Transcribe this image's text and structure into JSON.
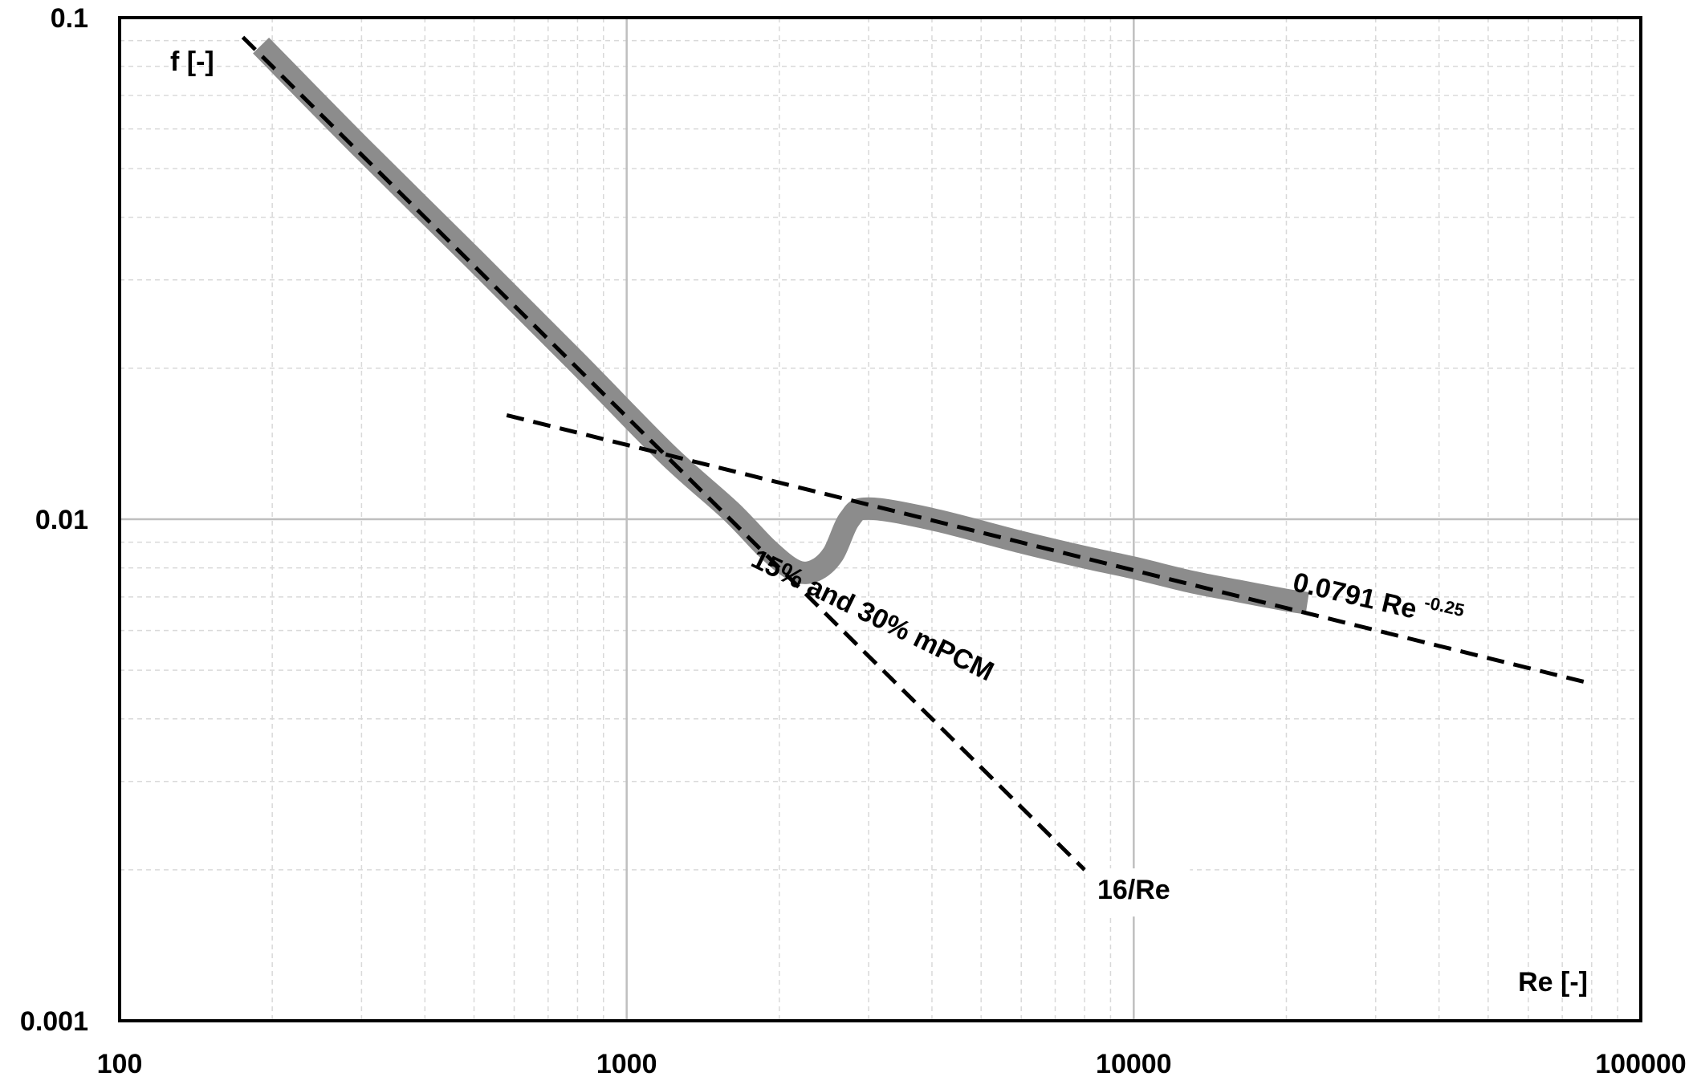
{
  "chart_data": {
    "type": "line",
    "x_scale": "log",
    "y_scale": "log",
    "xlim": [
      100,
      100000
    ],
    "ylim": [
      0.001,
      0.1
    ],
    "x_ticks": [
      "100",
      "1000",
      "10000",
      "100000"
    ],
    "y_ticks": [
      "0.001",
      "0.01",
      "0.1"
    ],
    "xlabel": "Re [-]",
    "ylabel": "f [-]",
    "grid": {
      "major": true,
      "minor": true
    },
    "series": [
      {
        "name": "15% and 30% mPCM",
        "style": "thick-gray",
        "color": "#8c8c8c",
        "x": [
          190,
          300,
          500,
          800,
          1200,
          1600,
          1900,
          2150,
          2350,
          2550,
          2750,
          3000,
          4000,
          6000,
          8000,
          10000,
          13000,
          16000,
          20000,
          22000
        ],
        "y": [
          0.088,
          0.055,
          0.033,
          0.0205,
          0.0135,
          0.0104,
          0.0087,
          0.0079,
          0.0079,
          0.0085,
          0.01,
          0.0105,
          0.01,
          0.009,
          0.0084,
          0.008,
          0.0075,
          0.0072,
          0.0069,
          0.0068
        ]
      },
      {
        "name": "16/Re",
        "style": "dashed",
        "color": "#000000",
        "x": [
          175,
          300,
          500,
          800,
          1000,
          2000,
          4000,
          8000
        ],
        "y": [
          0.0914,
          0.0533,
          0.032,
          0.02,
          0.016,
          0.008,
          0.004,
          0.002
        ]
      },
      {
        "name": "0.0791 Re -0.25",
        "style": "dashed",
        "color": "#000000",
        "x": [
          580,
          1000,
          2000,
          5000,
          10000,
          20000,
          40000,
          80000
        ],
        "y": [
          0.01612,
          0.01407,
          0.01183,
          0.00941,
          0.00791,
          0.00665,
          0.00559,
          0.0047
        ]
      }
    ],
    "annotations": [
      {
        "text": "15% and 30% mPCM",
        "x": 3000,
        "y": 0.0062,
        "angle": 26
      },
      {
        "text": "16/Re",
        "x": 10000,
        "y": 0.00175,
        "angle": 0
      },
      {
        "text": "0.0791 Re",
        "sup": "-0.25",
        "x": 30000,
        "y": 0.0066,
        "angle": 13
      }
    ]
  }
}
